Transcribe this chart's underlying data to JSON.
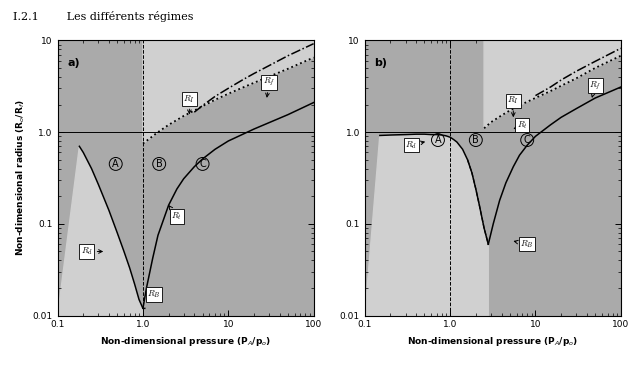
{
  "fig_width": 6.4,
  "fig_height": 3.67,
  "dpi": 100,
  "xlim": [
    0.1,
    100
  ],
  "ylim": [
    0.01,
    10
  ],
  "bg_dark": "#aaaaaa",
  "bg_light": "#d0d0d0",
  "bg_white": "#e8e8e8",
  "xlabel": "Non-dimensional pressure (P$_A$/p$_o$)",
  "ylabel": "Non-dimensional radius (R$_o$/R$_f$)",
  "header": "I.2.1        Les différents régimes",
  "p_rd_a": [
    0.18,
    0.2,
    0.25,
    0.3,
    0.35,
    0.4,
    0.5,
    0.6,
    0.7,
    0.8,
    0.9,
    1.0,
    1.05
  ],
  "rd_a": [
    0.7,
    0.6,
    0.4,
    0.27,
    0.19,
    0.14,
    0.08,
    0.05,
    0.033,
    0.022,
    0.015,
    0.012,
    0.012
  ],
  "p_rt_a": [
    1.0,
    1.1,
    1.3,
    1.5,
    2.0,
    2.5,
    3.0,
    4.0,
    5.0,
    7.0,
    10.0,
    20.0,
    50.0,
    100.0
  ],
  "rt_a": [
    0.012,
    0.02,
    0.042,
    0.075,
    0.16,
    0.24,
    0.31,
    0.42,
    0.51,
    0.65,
    0.8,
    1.08,
    1.55,
    2.1
  ],
  "p_ri_a": [
    1.0,
    1.5,
    2.0,
    3.0,
    4.0,
    5.0,
    7.0,
    10.0,
    20.0,
    50.0,
    100.0
  ],
  "ri_a": [
    0.75,
    1.0,
    1.2,
    1.5,
    1.72,
    1.92,
    2.25,
    2.62,
    3.45,
    4.9,
    6.5
  ],
  "p_rf_a": [
    4.0,
    5.0,
    7.0,
    10.0,
    15.0,
    20.0,
    30.0,
    50.0,
    100.0
  ],
  "rf_a": [
    1.65,
    1.95,
    2.45,
    3.0,
    3.75,
    4.35,
    5.3,
    6.8,
    9.2
  ],
  "p_rd_b": [
    0.15,
    0.2,
    0.3,
    0.4,
    0.5,
    0.6,
    0.7,
    0.8,
    0.9,
    1.0,
    1.1,
    1.2,
    1.4,
    1.6,
    1.8,
    2.0,
    2.2,
    2.5,
    2.8
  ],
  "rd_b": [
    0.92,
    0.93,
    0.94,
    0.95,
    0.95,
    0.94,
    0.94,
    0.93,
    0.91,
    0.88,
    0.83,
    0.78,
    0.65,
    0.5,
    0.36,
    0.24,
    0.16,
    0.09,
    0.06
  ],
  "p_rt_b": [
    2.8,
    3.2,
    3.8,
    4.5,
    5.5,
    6.5,
    8.0,
    10.0,
    15.0,
    20.0,
    30.0,
    50.0,
    100.0
  ],
  "rt_b": [
    0.06,
    0.1,
    0.18,
    0.28,
    0.42,
    0.56,
    0.72,
    0.9,
    1.2,
    1.45,
    1.8,
    2.35,
    3.1
  ],
  "p_ri_b": [
    2.5,
    3.0,
    4.0,
    5.0,
    6.0,
    7.0,
    8.0,
    10.0,
    15.0,
    20.0,
    30.0,
    50.0,
    100.0
  ],
  "ri_b": [
    1.1,
    1.28,
    1.52,
    1.72,
    1.88,
    2.02,
    2.14,
    2.36,
    2.8,
    3.2,
    3.85,
    5.0,
    6.8
  ],
  "p_rf_b": [
    10.0,
    15.0,
    20.0,
    30.0,
    50.0,
    100.0
  ],
  "rf_b": [
    2.5,
    3.1,
    3.7,
    4.6,
    5.9,
    8.2
  ]
}
